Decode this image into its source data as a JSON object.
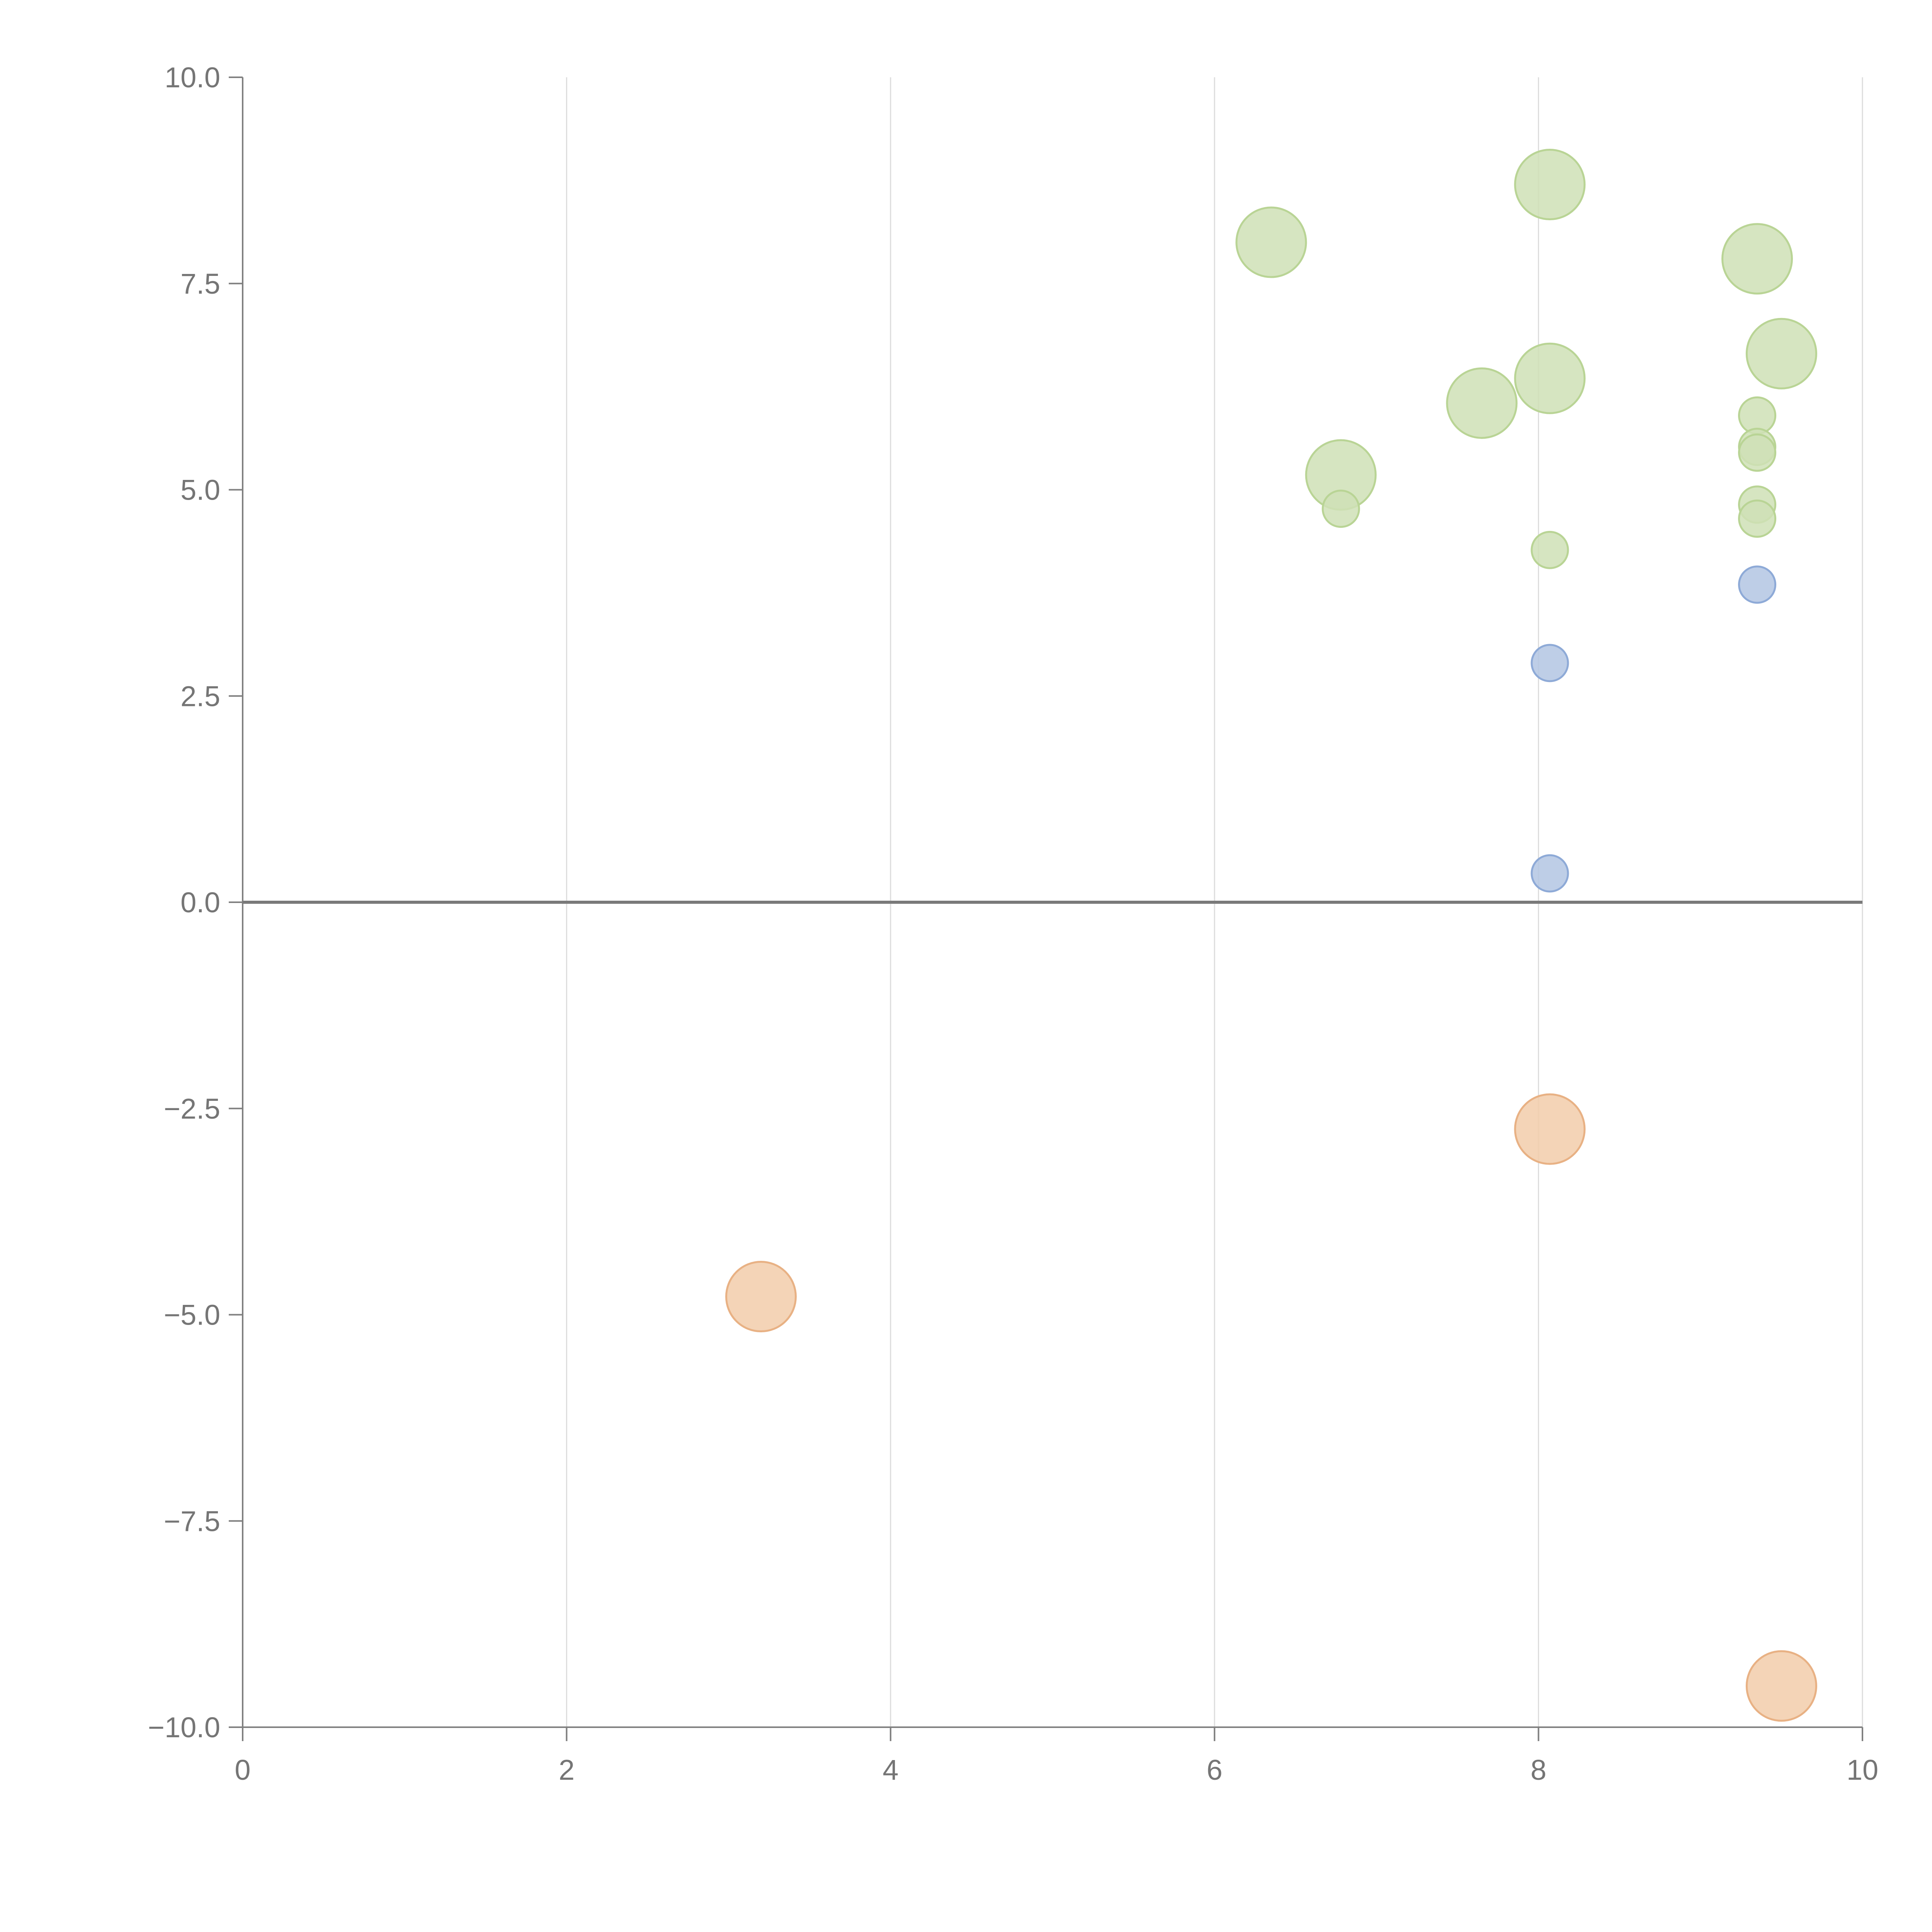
{
  "chart_data": {
    "type": "scatter",
    "subtype": "bubble",
    "title": "",
    "xlabel": "",
    "ylabel": "",
    "xlim": [
      0,
      10
    ],
    "ylim": [
      -10,
      10
    ],
    "x_ticks": [
      0,
      2,
      4,
      6,
      8,
      10
    ],
    "x_tick_labels": [
      "0",
      "2",
      "4",
      "6",
      "8",
      "10"
    ],
    "y_ticks": [
      10,
      7.5,
      5,
      2.5,
      0,
      -2.5,
      -5,
      -7.5,
      -10
    ],
    "y_tick_labels": [
      "10.0",
      "7.5",
      "5.0",
      "2.5",
      "0.0",
      "−2.5",
      "−5.0",
      "−7.5",
      "−10.0"
    ],
    "grid": {
      "vertical": true,
      "horizontal": false
    },
    "zero_line": true,
    "legend": "none",
    "colors": {
      "green_fill": "#cfe0b6",
      "green_stroke": "#b9d495",
      "blue_fill": "#b3c6e3",
      "blue_stroke": "#8eaad7",
      "orange_fill": "#f2cdaa",
      "orange_stroke": "#e8b184",
      "grid": "#dcdcdc",
      "axis": "#808080",
      "tick_label": "#757575"
    },
    "series": [
      {
        "color": "green",
        "points": [
          {
            "x": 8.07,
            "y": 8.7,
            "size": 2
          },
          {
            "x": 6.35,
            "y": 8.0,
            "size": 2
          },
          {
            "x": 9.35,
            "y": 7.8,
            "size": 2
          },
          {
            "x": 9.5,
            "y": 6.65,
            "size": 2
          },
          {
            "x": 8.07,
            "y": 6.35,
            "size": 2
          },
          {
            "x": 7.65,
            "y": 6.05,
            "size": 2
          },
          {
            "x": 6.78,
            "y": 5.18,
            "size": 2
          },
          {
            "x": 9.35,
            "y": 5.9,
            "size": 1
          },
          {
            "x": 9.35,
            "y": 5.52,
            "size": 1
          },
          {
            "x": 9.35,
            "y": 5.45,
            "size": 1
          },
          {
            "x": 9.35,
            "y": 4.82,
            "size": 1
          },
          {
            "x": 9.35,
            "y": 4.65,
            "size": 1
          },
          {
            "x": 6.78,
            "y": 4.77,
            "size": 1
          },
          {
            "x": 8.07,
            "y": 4.27,
            "size": 1
          }
        ]
      },
      {
        "color": "blue",
        "points": [
          {
            "x": 9.35,
            "y": 3.85,
            "size": 1
          },
          {
            "x": 8.07,
            "y": 2.9,
            "size": 1
          },
          {
            "x": 8.07,
            "y": 0.35,
            "size": 1
          }
        ]
      },
      {
        "color": "orange",
        "points": [
          {
            "x": 8.07,
            "y": -2.75,
            "size": 2
          },
          {
            "x": 3.2,
            "y": -4.78,
            "size": 2
          },
          {
            "x": 9.5,
            "y": -9.5,
            "size": 2
          }
        ]
      }
    ]
  }
}
